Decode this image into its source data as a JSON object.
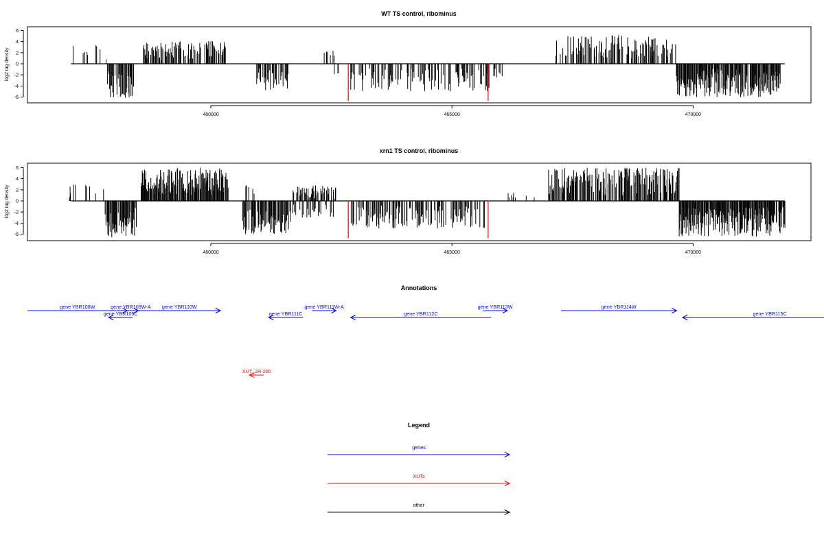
{
  "colors": {
    "gene": "#0000ff",
    "xut": "#ff0000",
    "other": "#000000",
    "bar": "#000000",
    "highlight": "#ff0000"
  },
  "chart_data": [
    {
      "type": "bar",
      "title": "WT TS control, ribominus",
      "xlabel": "",
      "ylabel": "log2 tag density",
      "xlim": [
        456800,
        472200
      ],
      "ylim": [
        -7,
        7
      ],
      "xticks": [
        460000,
        465000,
        470000
      ],
      "yticks": [
        6,
        4,
        2,
        0,
        -2,
        -4,
        -6
      ],
      "grid": false,
      "segments": [
        {
          "start": 457100,
          "end": 457700,
          "sign": 1,
          "max": 4.0,
          "density": 0.08,
          "seed": 11
        },
        {
          "start": 457800,
          "end": 458100,
          "sign": 1,
          "max": 2.7,
          "density": 0.06,
          "seed": 12
        },
        {
          "start": 457850,
          "end": 458400,
          "sign": -1,
          "max": 6.1,
          "density": 0.7,
          "seed": 13
        },
        {
          "start": 458600,
          "end": 460300,
          "sign": 1,
          "max": 4.2,
          "density": 0.6,
          "seed": 14
        },
        {
          "start": 460950,
          "end": 461600,
          "sign": -1,
          "max": 4.9,
          "density": 0.65,
          "seed": 15
        },
        {
          "start": 462300,
          "end": 462600,
          "sign": 1,
          "max": 2.8,
          "density": 0.2,
          "seed": 16
        },
        {
          "start": 462400,
          "end": 462650,
          "sign": -1,
          "max": 2.0,
          "density": 0.15,
          "seed": 17
        },
        {
          "start": 462900,
          "end": 465800,
          "sign": -1,
          "max": 5.0,
          "density": 0.4,
          "seed": 18
        },
        {
          "start": 465850,
          "end": 466100,
          "sign": -1,
          "max": 2.5,
          "density": 0.2,
          "seed": 19
        },
        {
          "start": 467150,
          "end": 469650,
          "sign": 1,
          "max": 5.2,
          "density": 0.55,
          "seed": 20
        },
        {
          "start": 469650,
          "end": 471800,
          "sign": -1,
          "max": 6.0,
          "density": 0.9,
          "seed": 21
        }
      ],
      "red_lines": [
        {
          "x": 462850,
          "value": -6.7
        },
        {
          "x": 465750,
          "value": -6.7
        }
      ]
    },
    {
      "type": "bar",
      "title": "xrn1 TS control, ribominus",
      "xlabel": "",
      "ylabel": "log2 tag density",
      "xlim": [
        456800,
        472200
      ],
      "ylim": [
        -7,
        7
      ],
      "xticks": [
        460000,
        465000,
        470000
      ],
      "yticks": [
        6,
        4,
        2,
        0,
        -2,
        -4,
        -6
      ],
      "grid": false,
      "segments": [
        {
          "start": 457050,
          "end": 457800,
          "sign": 1,
          "max": 3.0,
          "density": 0.15,
          "seed": 31
        },
        {
          "start": 457800,
          "end": 458450,
          "sign": -1,
          "max": 6.6,
          "density": 0.85,
          "seed": 32
        },
        {
          "start": 458550,
          "end": 460350,
          "sign": 1,
          "max": 6.0,
          "density": 0.95,
          "seed": 33
        },
        {
          "start": 460700,
          "end": 460950,
          "sign": 1,
          "max": 2.8,
          "density": 0.1,
          "seed": 34
        },
        {
          "start": 460650,
          "end": 461650,
          "sign": -1,
          "max": 6.0,
          "density": 0.8,
          "seed": 35
        },
        {
          "start": 461700,
          "end": 462600,
          "sign": 1,
          "max": 2.8,
          "density": 0.55,
          "seed": 36
        },
        {
          "start": 461700,
          "end": 462600,
          "sign": -1,
          "max": 3.0,
          "density": 0.3,
          "seed": 37
        },
        {
          "start": 462900,
          "end": 465800,
          "sign": -1,
          "max": 5.0,
          "density": 0.5,
          "seed": 38
        },
        {
          "start": 466000,
          "end": 466800,
          "sign": 1,
          "max": 1.5,
          "density": 0.08,
          "seed": 39
        },
        {
          "start": 467000,
          "end": 469700,
          "sign": 1,
          "max": 6.0,
          "density": 0.75,
          "seed": 40
        },
        {
          "start": 469700,
          "end": 471900,
          "sign": -1,
          "max": 6.4,
          "density": 0.95,
          "seed": 41
        }
      ],
      "red_lines": [
        {
          "x": 462850,
          "value": -6.7
        },
        {
          "x": 465750,
          "value": -6.7
        }
      ]
    }
  ],
  "annotations": {
    "title": "Annotations",
    "genes": [
      {
        "label": "gene YBR108W",
        "start": 456200,
        "end": 458270,
        "strand": "+",
        "row": 0
      },
      {
        "label": "gene YBR109C",
        "start": 457880,
        "end": 458380,
        "strand": "-",
        "row": 1
      },
      {
        "label": "gene YBR109W-A",
        "start": 458180,
        "end": 458500,
        "strand": "+",
        "row": 0
      },
      {
        "label": "gene YBR110W",
        "start": 458500,
        "end": 460200,
        "strand": "+",
        "row": 0
      },
      {
        "label": "gene YBR111C",
        "start": 461200,
        "end": 461910,
        "strand": "-",
        "row": 1
      },
      {
        "label": "gene YBR111W-A",
        "start": 462100,
        "end": 462600,
        "strand": "+",
        "row": 0
      },
      {
        "label": "gene YBR112C",
        "start": 462900,
        "end": 465810,
        "strand": "-",
        "row": 1
      },
      {
        "label": "gene YBR113W",
        "start": 465640,
        "end": 466150,
        "strand": "+",
        "row": 0
      },
      {
        "label": "gene YBR114W",
        "start": 467260,
        "end": 469660,
        "strand": "+",
        "row": 0
      },
      {
        "label": "gene YBR115C",
        "start": 469780,
        "end": 473400,
        "strand": "-",
        "row": 1
      }
    ],
    "xuts": [
      {
        "label": "XUT_2R-200",
        "start": 460800,
        "end": 461100,
        "strand": "-"
      }
    ]
  },
  "legend": {
    "title": "Legend",
    "items": [
      {
        "label": "genes",
        "color_key": "gene"
      },
      {
        "label": "XUTs",
        "color_key": "xut"
      },
      {
        "label": "other",
        "color_key": "other"
      }
    ]
  }
}
